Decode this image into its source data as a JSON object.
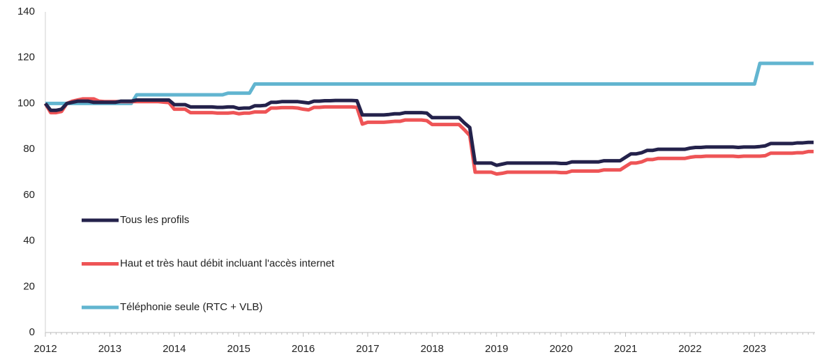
{
  "chart_data": {
    "type": "line",
    "categories": [
      "2012",
      null,
      null,
      null,
      null,
      null,
      null,
      null,
      null,
      null,
      null,
      null,
      "2013",
      null,
      null,
      null,
      null,
      null,
      null,
      null,
      null,
      null,
      null,
      null,
      "2014",
      null,
      null,
      null,
      null,
      null,
      null,
      null,
      null,
      null,
      null,
      null,
      "2015",
      null,
      null,
      null,
      null,
      null,
      null,
      null,
      null,
      null,
      null,
      null,
      "2016",
      null,
      null,
      null,
      null,
      null,
      null,
      null,
      null,
      null,
      null,
      null,
      "2017",
      null,
      null,
      null,
      null,
      null,
      null,
      null,
      null,
      null,
      null,
      null,
      "2018",
      null,
      null,
      null,
      null,
      null,
      null,
      null,
      null,
      null,
      null,
      null,
      "2019",
      null,
      null,
      null,
      null,
      null,
      null,
      null,
      null,
      null,
      null,
      null,
      "2020",
      null,
      null,
      null,
      null,
      null,
      null,
      null,
      null,
      null,
      null,
      null,
      "2021",
      null,
      null,
      null,
      null,
      null,
      null,
      null,
      null,
      null,
      null,
      null,
      "2022",
      null,
      null,
      null,
      null,
      null,
      null,
      null,
      null,
      null,
      null,
      null,
      "2023",
      null,
      null,
      null,
      null,
      null,
      null,
      null,
      null,
      null,
      null,
      null
    ],
    "series": [
      {
        "name": "Tous les profils",
        "color": "#24224b",
        "values": [
          100,
          97,
          97,
          97.5,
          100,
          100.5,
          101,
          101,
          101,
          100.5,
          100.5,
          100.5,
          100.5,
          100.5,
          101,
          101,
          101,
          101.5,
          101.5,
          101.5,
          101.5,
          101.5,
          101.5,
          101.5,
          99.5,
          99.5,
          99.5,
          98.5,
          98.5,
          98.5,
          98.5,
          98.5,
          98.3,
          98.3,
          98.5,
          98.5,
          97.8,
          98,
          98,
          99,
          99,
          99.2,
          100.5,
          100.5,
          100.8,
          100.8,
          100.8,
          100.8,
          100.5,
          100.2,
          101,
          101,
          101.2,
          101.2,
          101.3,
          101.3,
          101.3,
          101.3,
          101.2,
          95,
          95,
          95,
          95,
          95,
          95.2,
          95.5,
          95.5,
          96,
          96,
          96,
          96,
          95.8,
          93.8,
          93.8,
          93.8,
          93.8,
          93.8,
          93.8,
          91.5,
          89.5,
          74,
          74,
          74,
          74,
          73,
          73.5,
          74,
          74,
          74,
          74,
          74,
          74,
          74,
          74,
          74,
          74,
          73.8,
          73.8,
          74.5,
          74.5,
          74.5,
          74.5,
          74.5,
          74.5,
          75,
          75,
          75,
          75,
          76.5,
          78,
          78,
          78.5,
          79.5,
          79.5,
          80,
          80,
          80,
          80,
          80,
          80,
          80.5,
          80.8,
          80.8,
          81,
          81,
          81,
          81,
          81,
          81,
          80.8,
          81,
          81,
          81,
          81.2,
          81.5,
          82.5,
          82.5,
          82.5,
          82.5,
          82.5,
          82.8,
          82.8,
          83,
          83
        ]
      },
      {
        "name": "Haut et très haut débit incluant l'accès internet",
        "color": "#ee5456",
        "values": [
          100,
          96,
          96,
          96.5,
          100,
          101,
          101.5,
          102,
          102,
          102,
          101,
          100.8,
          100.8,
          100.8,
          100.8,
          100.8,
          100.8,
          100.8,
          100.8,
          100.8,
          100.8,
          100.8,
          100.6,
          100.4,
          97.5,
          97.5,
          97.5,
          96,
          96,
          96,
          96,
          96,
          95.8,
          95.8,
          95.8,
          96,
          95.5,
          95.8,
          95.8,
          96.3,
          96.3,
          96.3,
          98,
          98,
          98.2,
          98.2,
          98.2,
          98,
          97.5,
          97.2,
          98.3,
          98.3,
          98.5,
          98.5,
          98.5,
          98.5,
          98.5,
          98.5,
          98.3,
          91,
          91.8,
          91.8,
          91.8,
          91.8,
          92,
          92.2,
          92.2,
          92.8,
          92.8,
          92.8,
          92.8,
          92.5,
          90.8,
          90.8,
          90.8,
          90.8,
          90.8,
          90.8,
          88.5,
          86,
          70,
          70,
          70,
          70,
          69.2,
          69.5,
          70,
          70,
          70,
          70,
          70,
          70,
          70,
          70,
          70,
          70,
          69.8,
          69.8,
          70.5,
          70.5,
          70.5,
          70.5,
          70.5,
          70.5,
          71,
          71,
          71,
          71,
          72.5,
          74,
          74,
          74.5,
          75.5,
          75.5,
          76,
          76,
          76,
          76,
          76,
          76,
          76.5,
          76.8,
          76.8,
          77,
          77,
          77,
          77,
          77,
          77,
          76.8,
          77,
          77,
          77,
          77,
          77.2,
          78.3,
          78.3,
          78.3,
          78.3,
          78.3,
          78.5,
          78.5,
          79,
          79
        ]
      },
      {
        "name": "Téléphonie seule (RTC + VLB)",
        "color": "#62b5d0",
        "values": [
          100,
          100,
          100,
          100,
          100,
          100,
          100,
          100,
          100,
          100,
          100,
          100,
          100,
          100,
          100,
          100,
          100,
          103.8,
          103.8,
          103.8,
          103.8,
          103.8,
          103.8,
          103.8,
          103.8,
          103.8,
          103.8,
          103.8,
          103.8,
          103.8,
          103.8,
          103.8,
          103.8,
          103.8,
          104.5,
          104.5,
          104.5,
          104.5,
          104.5,
          108.5,
          108.5,
          108.5,
          108.5,
          108.5,
          108.5,
          108.5,
          108.5,
          108.5,
          108.5,
          108.5,
          108.5,
          108.5,
          108.5,
          108.5,
          108.5,
          108.5,
          108.5,
          108.5,
          108.5,
          108.5,
          108.5,
          108.5,
          108.5,
          108.5,
          108.5,
          108.5,
          108.5,
          108.5,
          108.5,
          108.5,
          108.5,
          108.5,
          108.5,
          108.5,
          108.5,
          108.5,
          108.5,
          108.5,
          108.5,
          108.5,
          108.5,
          108.5,
          108.5,
          108.5,
          108.5,
          108.5,
          108.5,
          108.5,
          108.5,
          108.5,
          108.5,
          108.5,
          108.5,
          108.5,
          108.5,
          108.5,
          108.5,
          108.5,
          108.5,
          108.5,
          108.5,
          108.5,
          108.5,
          108.5,
          108.5,
          108.5,
          108.5,
          108.5,
          108.5,
          108.5,
          108.5,
          108.5,
          108.5,
          108.5,
          108.5,
          108.5,
          108.5,
          108.5,
          108.5,
          108.5,
          108.5,
          108.5,
          108.5,
          108.5,
          108.5,
          108.5,
          108.5,
          108.5,
          108.5,
          108.5,
          108.5,
          108.5,
          108.5,
          117.5,
          117.5,
          117.5,
          117.5,
          117.5,
          117.5,
          117.5,
          117.5,
          117.5,
          117.5,
          117.5
        ]
      }
    ],
    "ylim": [
      0,
      140
    ],
    "yticks": [
      0,
      20,
      40,
      60,
      80,
      100,
      120,
      140
    ],
    "grid": false,
    "legend": "lower left"
  }
}
